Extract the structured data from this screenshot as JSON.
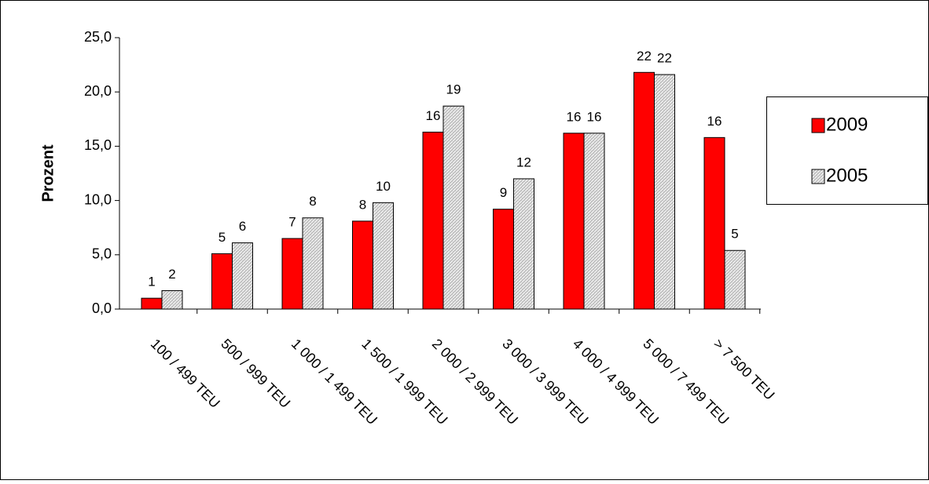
{
  "chart_data": {
    "type": "bar",
    "y_label": "Prozent",
    "categories": [
      "100 / 499 TEU",
      "500 / 999 TEU",
      "1 000 / 1 499 TEU",
      "1 500 / 1 999 TEU",
      "2 000 / 2 999 TEU",
      "3 000 / 3 999 TEU",
      "4 000 / 4 999 TEU",
      "5 000 / 7 499 TEU",
      ">  7 500 TEU"
    ],
    "series": [
      {
        "name": "2009",
        "color": "#ff0000",
        "values": [
          1.0,
          5.1,
          6.5,
          8.1,
          16.3,
          9.2,
          16.2,
          21.8,
          15.8
        ],
        "value_labels": [
          "1",
          "5",
          "7",
          "8",
          "16",
          "9",
          "16",
          "22",
          "16"
        ]
      },
      {
        "name": "2005",
        "color": "#c0c0c0",
        "hatched": true,
        "values": [
          1.7,
          6.1,
          8.4,
          9.8,
          18.7,
          12.0,
          16.2,
          21.6,
          5.4
        ],
        "value_labels": [
          "2",
          "6",
          "8",
          "10",
          "19",
          "12",
          "16",
          "22",
          "5"
        ]
      }
    ],
    "ylim": [
      0,
      25
    ],
    "yticks": [
      {
        "value": 0,
        "label": "0,0"
      },
      {
        "value": 5,
        "label": "5,0"
      },
      {
        "value": 10,
        "label": "10,0"
      },
      {
        "value": 15,
        "label": "15,0"
      },
      {
        "value": 20,
        "label": "20,0"
      },
      {
        "value": 25,
        "label": "25,0"
      }
    ],
    "legend": "right"
  }
}
